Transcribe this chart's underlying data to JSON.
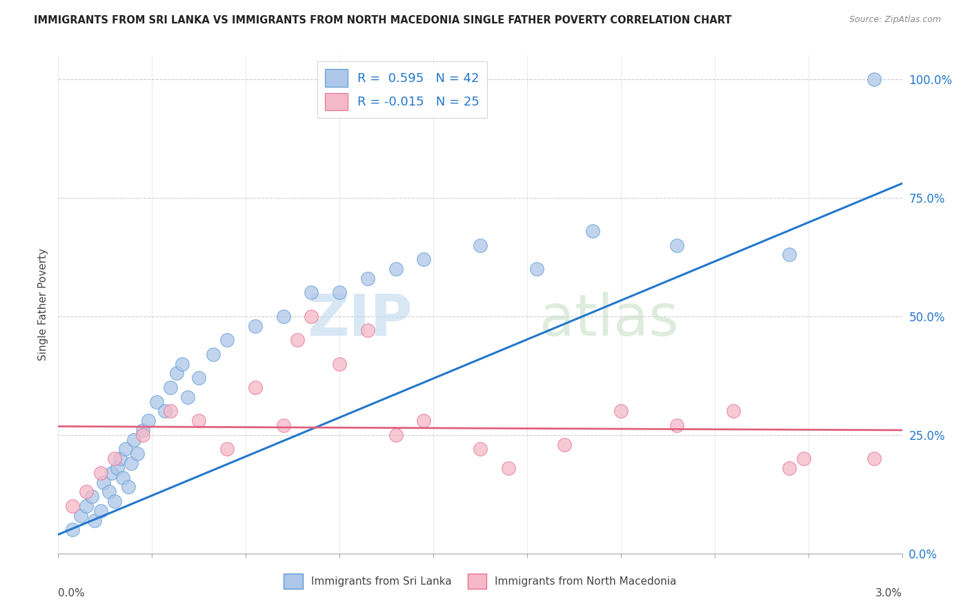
{
  "title": "IMMIGRANTS FROM SRI LANKA VS IMMIGRANTS FROM NORTH MACEDONIA SINGLE FATHER POVERTY CORRELATION CHART",
  "source": "Source: ZipAtlas.com",
  "ylabel": "Single Father Poverty",
  "sri_lanka_label": "Immigrants from Sri Lanka",
  "north_macedonia_label": "Immigrants from North Macedonia",
  "xlim": [
    0.0,
    0.03
  ],
  "ylim": [
    0.0,
    1.05
  ],
  "right_yticks": [
    0.0,
    0.25,
    0.5,
    0.75,
    1.0
  ],
  "right_yticklabels": [
    "0.0%",
    "25.0%",
    "50.0%",
    "75.0%",
    "100.0%"
  ],
  "sri_lanka_R": 0.595,
  "sri_lanka_N": 42,
  "north_macedonia_R": -0.015,
  "north_macedonia_N": 25,
  "sri_lanka_color": "#aec6e8",
  "sri_lanka_edge_color": "#5b9bd5",
  "sri_lanka_line_color": "#2277cc",
  "north_macedonia_color": "#f4b8c8",
  "north_macedonia_edge_color": "#e87090",
  "north_macedonia_line_color": "#e06080",
  "watermark_zip_color": "#d8e8f8",
  "watermark_atlas_color": "#d0e8d0",
  "sri_lanka_x": [
    0.0005,
    0.0008,
    0.001,
    0.0012,
    0.0013,
    0.0015,
    0.0016,
    0.0018,
    0.0019,
    0.002,
    0.0021,
    0.0022,
    0.0023,
    0.0024,
    0.0025,
    0.0026,
    0.0027,
    0.0028,
    0.003,
    0.0032,
    0.0035,
    0.0038,
    0.004,
    0.0042,
    0.0044,
    0.0046,
    0.005,
    0.0055,
    0.006,
    0.007,
    0.008,
    0.009,
    0.01,
    0.011,
    0.012,
    0.013,
    0.015,
    0.017,
    0.019,
    0.022,
    0.026,
    0.029
  ],
  "sri_lanka_y": [
    0.05,
    0.08,
    0.1,
    0.12,
    0.07,
    0.09,
    0.15,
    0.13,
    0.17,
    0.11,
    0.18,
    0.2,
    0.16,
    0.22,
    0.14,
    0.19,
    0.24,
    0.21,
    0.26,
    0.28,
    0.32,
    0.3,
    0.35,
    0.38,
    0.4,
    0.33,
    0.37,
    0.42,
    0.45,
    0.48,
    0.5,
    0.55,
    0.55,
    0.58,
    0.6,
    0.62,
    0.65,
    0.6,
    0.68,
    0.65,
    0.63,
    1.0
  ],
  "north_macedonia_x": [
    0.0005,
    0.001,
    0.0015,
    0.002,
    0.003,
    0.004,
    0.005,
    0.006,
    0.007,
    0.008,
    0.0085,
    0.009,
    0.01,
    0.011,
    0.012,
    0.013,
    0.015,
    0.016,
    0.018,
    0.02,
    0.022,
    0.024,
    0.026,
    0.0265,
    0.029
  ],
  "north_macedonia_y": [
    0.1,
    0.13,
    0.17,
    0.2,
    0.25,
    0.3,
    0.28,
    0.22,
    0.35,
    0.27,
    0.45,
    0.5,
    0.4,
    0.47,
    0.25,
    0.28,
    0.22,
    0.18,
    0.23,
    0.3,
    0.27,
    0.3,
    0.18,
    0.2,
    0.2
  ],
  "sri_lanka_trend_x0": 0.0,
  "sri_lanka_trend_y0": 0.04,
  "sri_lanka_trend_x1": 0.03,
  "sri_lanka_trend_y1": 0.78,
  "north_macedonia_trend_x0": 0.0,
  "north_macedonia_trend_y0": 0.268,
  "north_macedonia_trend_x1": 0.03,
  "north_macedonia_trend_y1": 0.26
}
